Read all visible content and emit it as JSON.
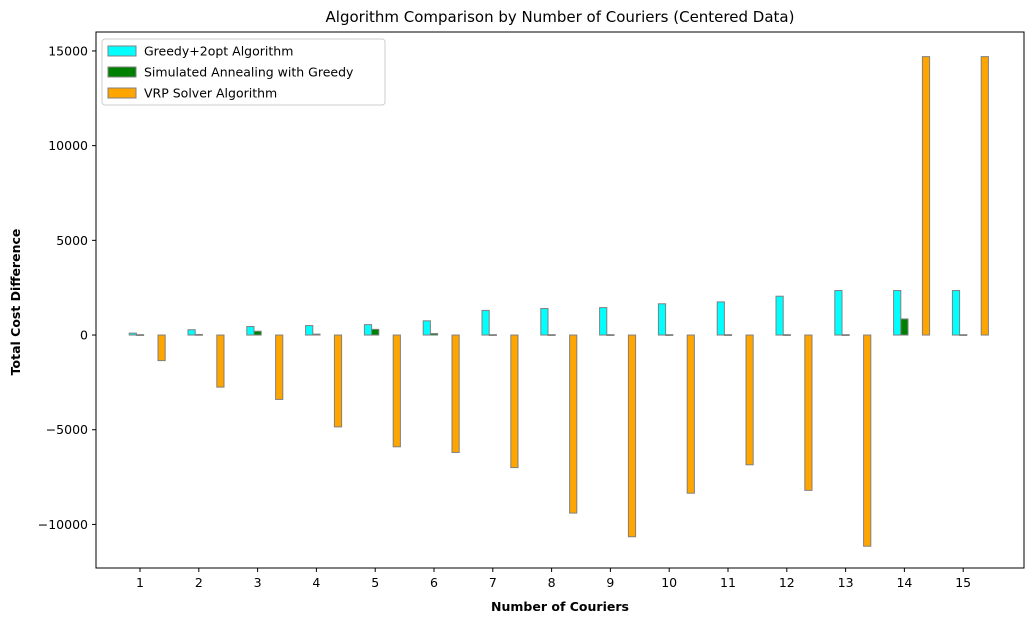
{
  "chart_data": {
    "type": "bar",
    "title": "Algorithm Comparison by Number of Couriers (Centered Data)",
    "xlabel": "Number of Couriers",
    "ylabel": "Total Cost Difference",
    "categories": [
      "1",
      "2",
      "3",
      "4",
      "5",
      "6",
      "7",
      "8",
      "9",
      "10",
      "11",
      "12",
      "13",
      "14",
      "15"
    ],
    "ylim": [
      -12300,
      16000
    ],
    "yticks": [
      -10000,
      -5000,
      0,
      5000,
      10000,
      15000
    ],
    "ytick_labels": [
      "−10000",
      "−5000",
      "0",
      "5000",
      "10000",
      "15000"
    ],
    "grid": false,
    "legend_position": "top-left",
    "series": [
      {
        "name": "Greedy+2opt Algorithm",
        "color": "#00ffff",
        "values": [
          100,
          280,
          450,
          500,
          550,
          750,
          1300,
          1400,
          1450,
          1650,
          1750,
          2050,
          2350,
          2350,
          2350
        ]
      },
      {
        "name": "Simulated Annealing with Greedy",
        "color": "#008000",
        "values": [
          20,
          30,
          200,
          50,
          300,
          80,
          20,
          20,
          20,
          20,
          20,
          20,
          20,
          850,
          20
        ]
      },
      {
        "name": "VRP Solver Algorithm",
        "color": "#ffa500",
        "values": [
          -1350,
          -2750,
          -3400,
          -4850,
          -5900,
          -6200,
          -7000,
          -9400,
          -10650,
          -8350,
          -6850,
          -8200,
          -11150,
          14700,
          14700
        ]
      }
    ]
  }
}
